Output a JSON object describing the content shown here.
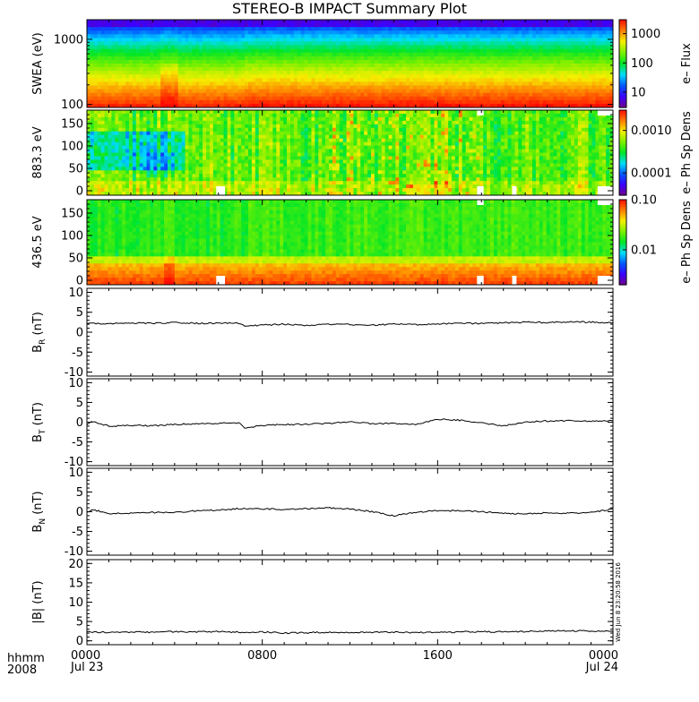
{
  "title": "STEREO-B IMPACT Summary Plot",
  "footer": {
    "row1": "hhmm",
    "row2": "2008",
    "stamp": "Wed Jun 8 23:20:58 2016"
  },
  "time_axis": {
    "ticks": [
      {
        "h": 0,
        "top": "0000",
        "bottom": "Jul 23"
      },
      {
        "h": 8,
        "top": "0800",
        "bottom": ""
      },
      {
        "h": 16,
        "top": "1600",
        "bottom": ""
      },
      {
        "h": 24,
        "top": "0000",
        "bottom": "Jul 24"
      }
    ]
  },
  "colors": {
    "colormap": "rainbow (purple-blue-cyan-green-yellow-red)",
    "line": "#000000",
    "frame": "#000000",
    "gap": "#ffffff"
  },
  "chart_data": [
    {
      "type": "heatmap",
      "ylabel": "SWEA (eV)",
      "yscale": "log",
      "ylim": [
        90,
        2000
      ],
      "yticks": [
        "100",
        "1000"
      ],
      "yticks_values": [
        100,
        1000
      ],
      "colorbar": {
        "label": "e– Flux",
        "scale": "log",
        "range": [
          3,
          3000
        ],
        "ticks": [
          "10",
          "100",
          "1000"
        ],
        "tick_values": [
          10,
          100,
          1000
        ]
      },
      "x_range_hours": [
        0,
        24
      ],
      "notes": "energy spectrogram: red below ~250 eV, green ~400-600 eV, blue above ~1000 eV; enhancement near 03:45 and 07:10"
    },
    {
      "type": "heatmap",
      "ylabel": "883.3 eV",
      "ylim": [
        -10,
        180
      ],
      "yticks": [
        "0",
        "50",
        "100",
        "150"
      ],
      "yticks_values": [
        0,
        50,
        100,
        150
      ],
      "colorbar": {
        "label": "e– Ph Sp Dens",
        "scale": "log",
        "range": [
          3e-05,
          0.003
        ],
        "ticks": [
          "0.0001",
          "0.0010"
        ],
        "tick_values": [
          0.0001,
          0.001
        ]
      },
      "x_range_hours": [
        0,
        24
      ],
      "notes": "pitch-angle distribution, mostly green-yellow with cyan patches before 04:00"
    },
    {
      "type": "heatmap",
      "ylabel": "436.5 eV",
      "ylim": [
        -10,
        180
      ],
      "yticks": [
        "0",
        "50",
        "100",
        "150"
      ],
      "yticks_values": [
        0,
        50,
        100,
        150
      ],
      "colorbar": {
        "label": "e– Ph Sp Dens",
        "scale": "log",
        "range": [
          0.002,
          0.1
        ],
        "ticks": [
          "0.01",
          "0.10"
        ],
        "tick_values": [
          0.01,
          0.1
        ]
      },
      "x_range_hours": [
        0,
        24
      ],
      "notes": "pitch-angle distribution, red/orange strahl below ~40 deg, green above"
    },
    {
      "type": "line",
      "ylabel": "B",
      "ylabel_sub": "R",
      "ylabel_unit": "(nT)",
      "ylim": [
        -11,
        11
      ],
      "yticks": [
        "-10",
        "-5",
        "0",
        "5",
        "10"
      ],
      "yticks_values": [
        -10,
        -5,
        0,
        5,
        10
      ],
      "x_hours": [
        0,
        1,
        2,
        3,
        4,
        5,
        6,
        7,
        7.2,
        8,
        9,
        10,
        11,
        12,
        13,
        14,
        15,
        16,
        17,
        18,
        19,
        20,
        21,
        22,
        23,
        24
      ],
      "y": [
        2.2,
        2.1,
        2.3,
        2.2,
        2.4,
        2.2,
        2.3,
        2.2,
        1.5,
        1.8,
        2.0,
        1.7,
        2.0,
        1.9,
        1.8,
        2.0,
        1.9,
        2.1,
        2.2,
        2.2,
        2.3,
        2.5,
        2.4,
        2.6,
        2.5,
        2.4
      ]
    },
    {
      "type": "line",
      "ylabel": "B",
      "ylabel_sub": "T",
      "ylabel_unit": "(nT)",
      "ylim": [
        -11,
        11
      ],
      "yticks": [
        "-10",
        "-5",
        "0",
        "5",
        "10"
      ],
      "yticks_values": [
        -10,
        -5,
        0,
        5,
        10
      ],
      "x_hours": [
        0,
        0.2,
        1,
        2,
        3,
        4,
        5,
        6,
        7,
        7.2,
        8,
        9,
        10,
        11,
        12,
        13,
        14,
        15,
        16,
        17,
        18,
        19,
        20,
        21,
        22,
        23,
        24
      ],
      "y": [
        -0.5,
        0.3,
        -1.0,
        -0.8,
        -0.9,
        -0.6,
        -0.4,
        -0.3,
        -0.2,
        -1.5,
        -0.8,
        -0.6,
        -0.5,
        -0.3,
        0.1,
        -0.4,
        -0.3,
        -0.6,
        0.7,
        0.5,
        -0.2,
        -0.9,
        0.0,
        0.3,
        0.4,
        0.2,
        0.3
      ]
    },
    {
      "type": "line",
      "ylabel": "B",
      "ylabel_sub": "N",
      "ylabel_unit": "(nT)",
      "ylim": [
        -11,
        11
      ],
      "yticks": [
        "-10",
        "-5",
        "0",
        "5",
        "10"
      ],
      "yticks_values": [
        -10,
        -5,
        0,
        5,
        10
      ],
      "x_hours": [
        0,
        0.3,
        1,
        2,
        3,
        4,
        5,
        6,
        7,
        8,
        9,
        10,
        11,
        12,
        13,
        14,
        15,
        16,
        17,
        18,
        19,
        20,
        21,
        22,
        23,
        23.7,
        24
      ],
      "y": [
        -0.2,
        0.5,
        -0.5,
        -0.4,
        -0.2,
        -0.1,
        0.2,
        0.4,
        0.8,
        0.7,
        0.6,
        0.8,
        1.0,
        0.7,
        0.0,
        -1.0,
        -0.2,
        0.3,
        0.2,
        0.0,
        -0.4,
        -0.5,
        -0.3,
        -0.4,
        -0.1,
        0.4,
        0.8
      ]
    },
    {
      "type": "line",
      "ylabel": "|B|",
      "ylabel_unit": "(nT)",
      "ylim": [
        -1,
        21
      ],
      "yticks": [
        "0",
        "5",
        "10",
        "15",
        "20"
      ],
      "yticks_values": [
        0,
        5,
        10,
        15,
        20
      ],
      "x_hours": [
        0,
        1,
        2,
        3,
        4,
        5,
        6,
        7,
        8,
        9,
        10,
        11,
        12,
        13,
        14,
        15,
        16,
        17,
        18,
        19,
        20,
        21,
        22,
        23,
        24
      ],
      "y": [
        2.3,
        2.2,
        2.3,
        2.2,
        2.4,
        2.3,
        2.4,
        2.2,
        2.3,
        2.0,
        2.1,
        2.2,
        2.1,
        2.2,
        2.2,
        2.1,
        2.2,
        2.3,
        2.4,
        2.3,
        2.4,
        2.6,
        2.6,
        2.5,
        2.4
      ]
    }
  ]
}
